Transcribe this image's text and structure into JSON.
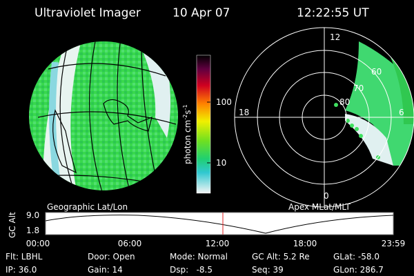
{
  "header": {
    "title": "Ultraviolet Imager",
    "date": "10 Apr 07",
    "time": "12:22:55 UT"
  },
  "colorbar": {
    "label": {
      "text": "photon cm",
      "exp1": "-2",
      "unit2": "s",
      "exp2": "-1"
    },
    "ticks": [
      "100",
      "10"
    ]
  },
  "polar": {
    "mlt_labels": [
      "12",
      "18",
      "6",
      "0"
    ],
    "mlat_labels": [
      "60",
      "70",
      "80"
    ]
  },
  "captions": {
    "left": "Geographic Lat/Lon",
    "right": "Apex MLat/MLT"
  },
  "altitude_plot": {
    "ylabel": "GC Alt",
    "yticks": [
      "9.0",
      "1.8"
    ],
    "xticks": [
      "00:00",
      "06:00",
      "12:00",
      "18:00",
      "23:59"
    ]
  },
  "info": {
    "rows": [
      [
        "Flt: LBHL",
        "Door: Open",
        "Mode: Normal",
        "GC Alt: 5.2 Re",
        "GLat: -58.0"
      ],
      [
        "IP: 36.0",
        "Gain: 14",
        "Dsp:   -8.5",
        "Seq: 39",
        "GLon: 286.7"
      ]
    ]
  }
}
